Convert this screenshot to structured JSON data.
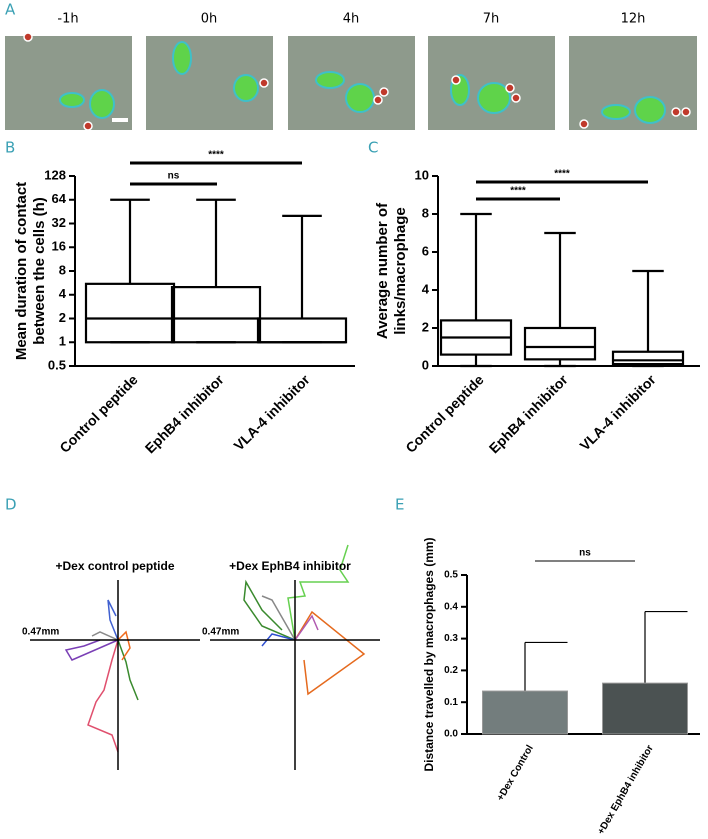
{
  "panel_a": {
    "label": "A",
    "times": [
      "-1h",
      "0h",
      "4h",
      "7h",
      "12h"
    ]
  },
  "chart_data": [
    {
      "type": "box",
      "panel": "B",
      "ylabel": [
        "Mean duration of contact",
        "between the cells (h)"
      ],
      "categories": [
        "Control peptide",
        "EphB4 inhibitor",
        "VLA-4 inhibitor"
      ],
      "boxes": [
        {
          "min": 1,
          "q1": 1,
          "median": 2,
          "q3": 5.5,
          "max": 64
        },
        {
          "min": 1,
          "q1": 1,
          "median": 2,
          "q3": 5,
          "max": 64
        },
        {
          "min": 1,
          "q1": 1,
          "median": 1,
          "q3": 2,
          "max": 40
        }
      ],
      "ylim": [
        0.5,
        128
      ],
      "yticks": [
        0.5,
        1,
        2,
        4,
        8,
        16,
        32,
        64,
        128
      ],
      "log_scale": true,
      "color": "#000000",
      "annotations": [
        "ns",
        "****"
      ]
    },
    {
      "type": "box",
      "panel": "C",
      "ylabel": [
        "Average number of",
        "links/macrophage"
      ],
      "categories": [
        "Control peptide",
        "EphB4 inhibitor",
        "VLA-4 inhibitor"
      ],
      "boxes": [
        {
          "min": 0,
          "q1": 0.6,
          "median": 1.5,
          "q3": 2.4,
          "max": 8
        },
        {
          "min": 0,
          "q1": 0.35,
          "median": 1,
          "q3": 2,
          "max": 7
        },
        {
          "min": 0,
          "q1": 0.1,
          "median": 0.3,
          "q3": 0.75,
          "max": 5
        }
      ],
      "ylim": [
        0,
        10
      ],
      "yticks": [
        0,
        2,
        4,
        6,
        8,
        10
      ],
      "log_scale": false,
      "color": "#000000",
      "annotations": [
        "****",
        "****"
      ]
    },
    {
      "type": "trajectory",
      "panel": "D",
      "titles": [
        "+Dex control peptide",
        "+Dex EphB4 inhibitor"
      ],
      "scale_label": "0.47mm"
    },
    {
      "type": "bar",
      "panel": "E",
      "ylabel": "Distance travelled by macrophages (mm)",
      "categories": [
        "+Dex Control",
        "+Dex EphB4 inhibitor"
      ],
      "values": [
        0.135,
        0.16
      ],
      "errors": [
        0.153,
        0.225
      ],
      "colors": [
        "#737d7d",
        "#4b5252"
      ],
      "ylim": [
        0,
        0.5
      ],
      "yticks": [
        {
          "value": 0,
          "label": "0.0"
        },
        0.1,
        0.2,
        0.3,
        0.4,
        0.5
      ],
      "annotations": [
        "ns"
      ]
    }
  ]
}
